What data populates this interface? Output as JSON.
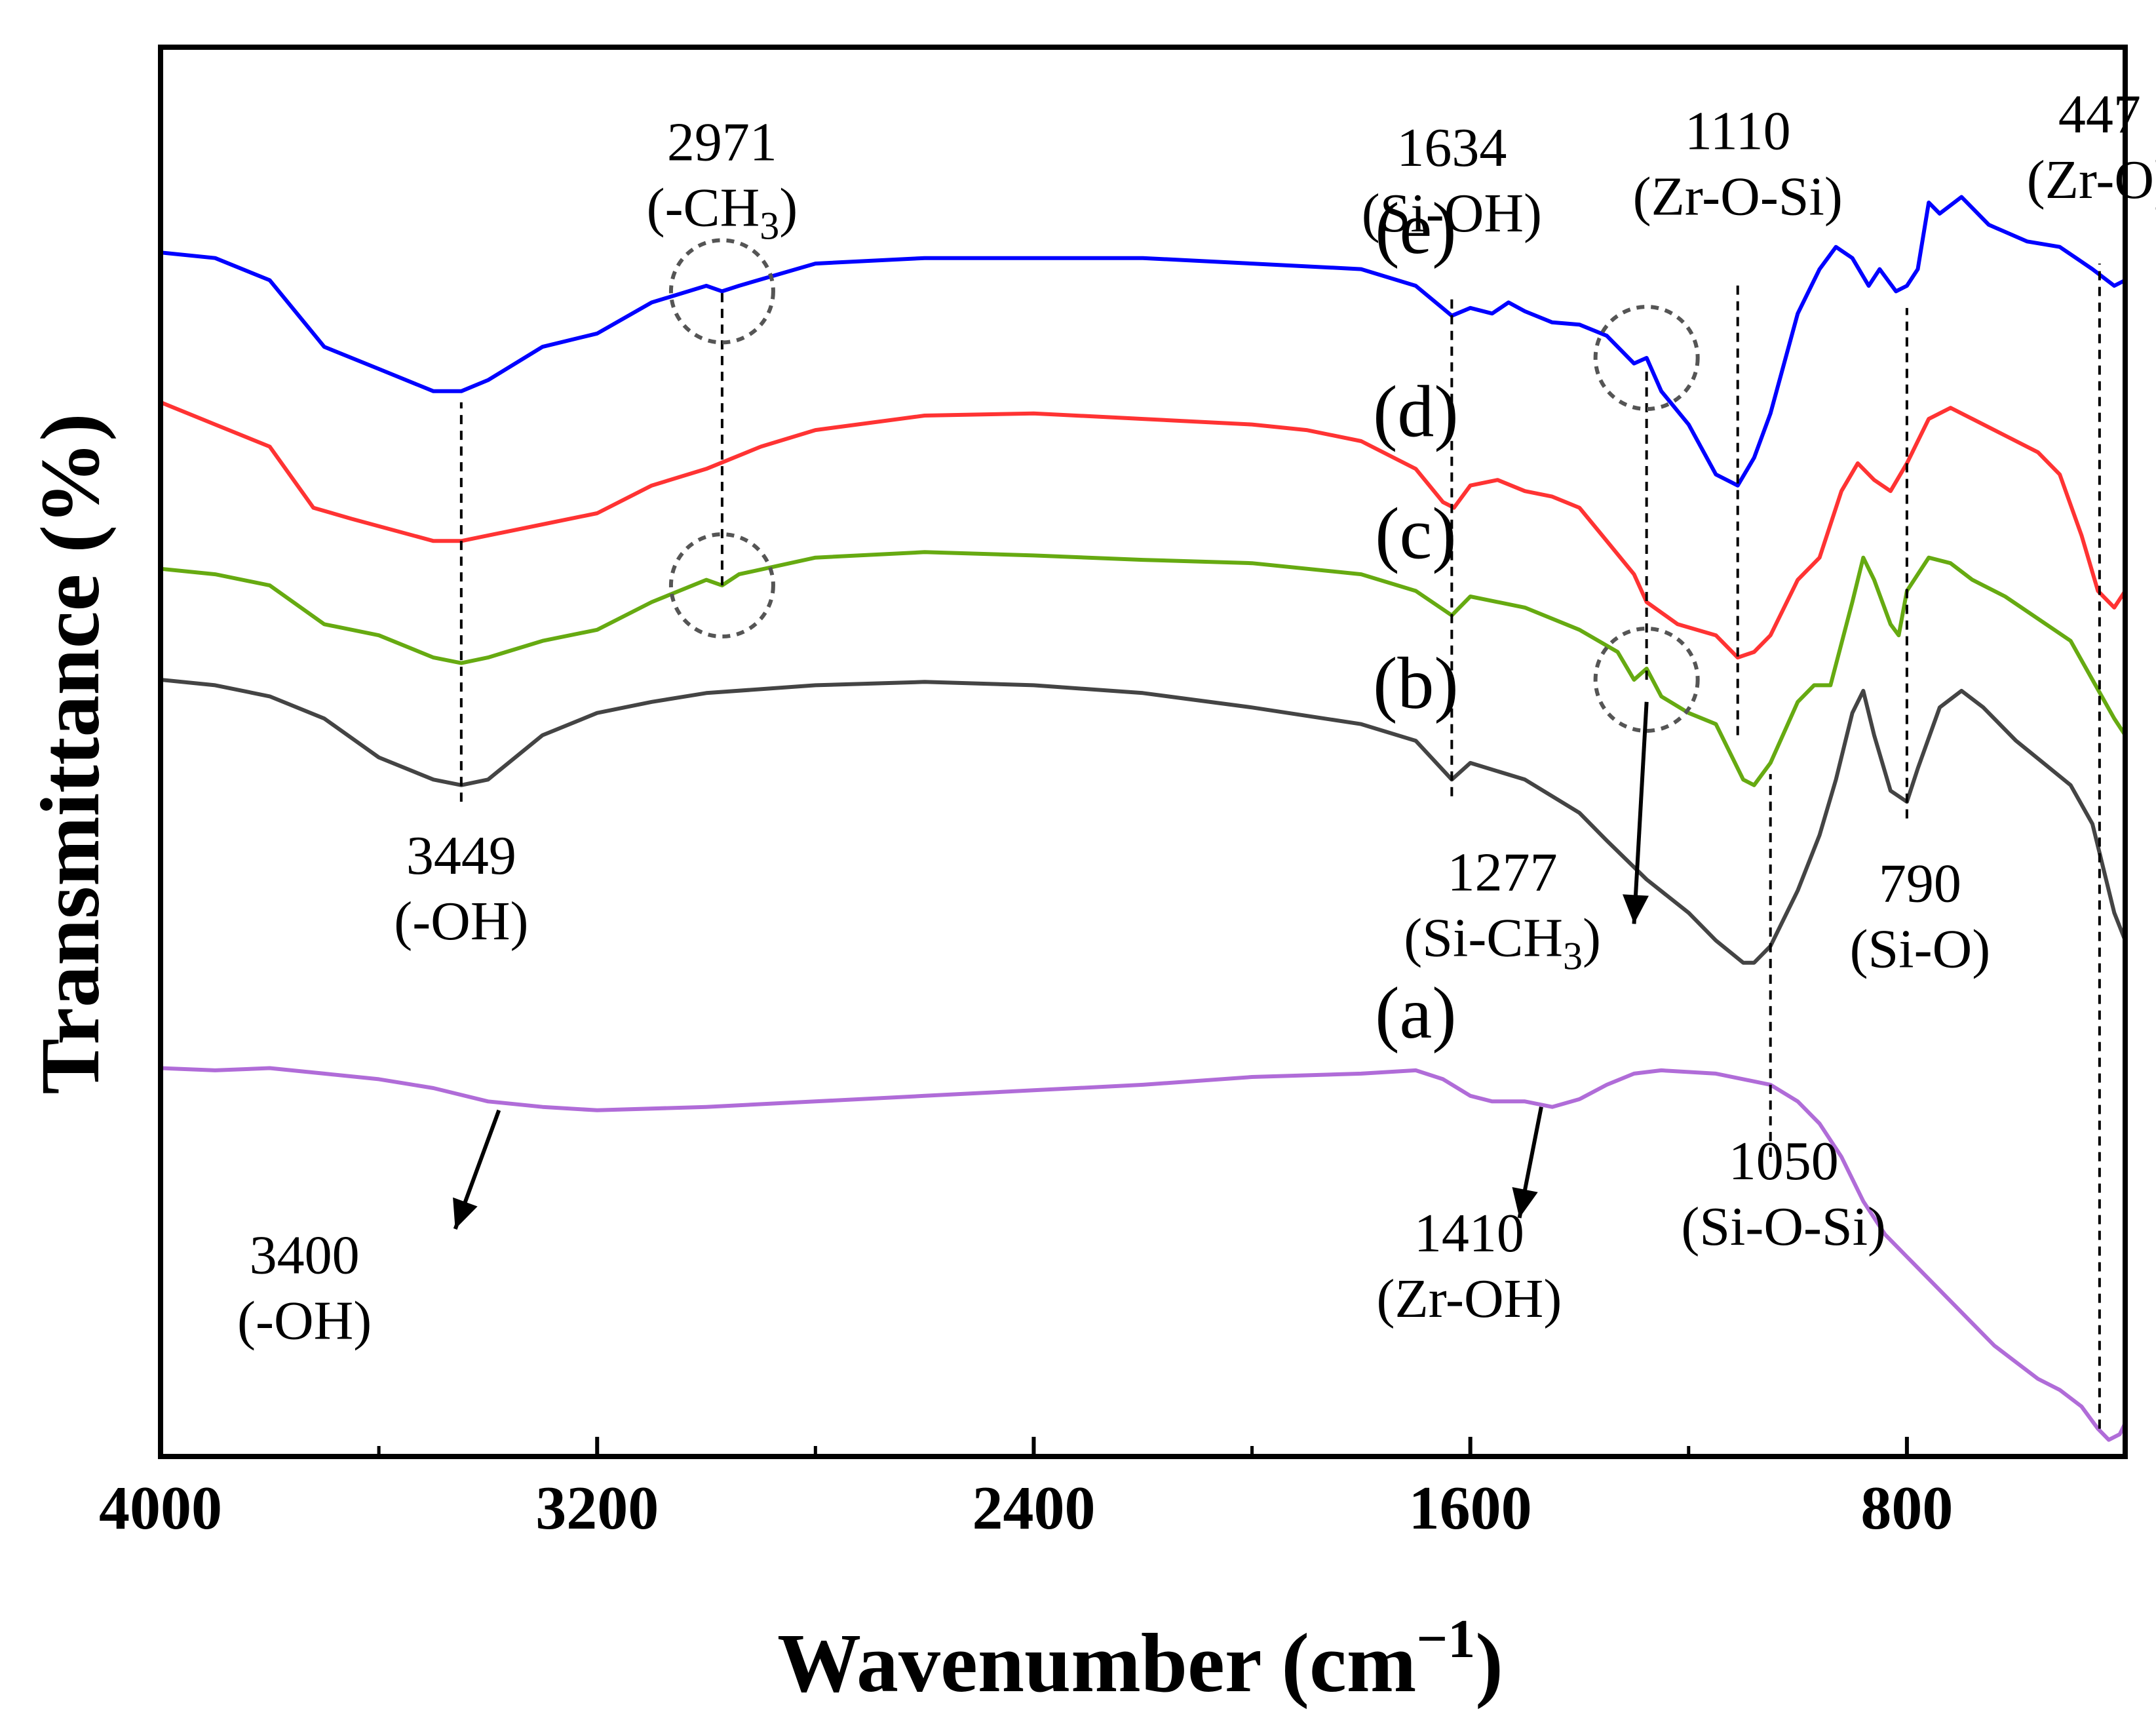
{
  "chart_data": {
    "type": "line",
    "xlabel": "Wavenumber (cm",
    "xlabel_sup": "−1",
    "xlabel_close": ")",
    "ylabel": "Transmittance (%)",
    "xlim": [
      4000,
      400
    ],
    "x_reversed": true,
    "yticks_shown": false,
    "x_ticks": [
      "4000",
      "3200",
      "2400",
      "1600",
      "800"
    ],
    "x_tick_values": [
      4000,
      3200,
      2400,
      1600,
      800
    ],
    "x_minor_tick_values": [
      3600,
      2800,
      2000,
      1200
    ],
    "series": [
      {
        "name": "(e)",
        "color": "#0000ff",
        "label_at": 1220,
        "points": [
          [
            4000,
            9.35
          ],
          [
            3900,
            9.3
          ],
          [
            3800,
            9.1
          ],
          [
            3700,
            8.5
          ],
          [
            3600,
            8.3
          ],
          [
            3500,
            8.1
          ],
          [
            3449,
            8.1
          ],
          [
            3400,
            8.2
          ],
          [
            3300,
            8.5
          ],
          [
            3200,
            8.62
          ],
          [
            3100,
            8.9
          ],
          [
            3000,
            9.05
          ],
          [
            2971,
            9.0
          ],
          [
            2940,
            9.05
          ],
          [
            2800,
            9.25
          ],
          [
            2600,
            9.3
          ],
          [
            2400,
            9.3
          ],
          [
            2200,
            9.3
          ],
          [
            2000,
            9.25
          ],
          [
            1800,
            9.2
          ],
          [
            1700,
            9.05
          ],
          [
            1634,
            8.78
          ],
          [
            1600,
            8.85
          ],
          [
            1560,
            8.8
          ],
          [
            1530,
            8.9
          ],
          [
            1500,
            8.82
          ],
          [
            1450,
            8.72
          ],
          [
            1400,
            8.7
          ],
          [
            1350,
            8.6
          ],
          [
            1300,
            8.35
          ],
          [
            1277,
            8.4
          ],
          [
            1250,
            8.1
          ],
          [
            1200,
            7.8
          ],
          [
            1150,
            7.35
          ],
          [
            1110,
            7.25
          ],
          [
            1080,
            7.5
          ],
          [
            1050,
            7.9
          ],
          [
            1000,
            8.8
          ],
          [
            960,
            9.2
          ],
          [
            930,
            9.4
          ],
          [
            900,
            9.3
          ],
          [
            870,
            9.05
          ],
          [
            850,
            9.2
          ],
          [
            820,
            9.0
          ],
          [
            800,
            9.05
          ],
          [
            780,
            9.2
          ],
          [
            760,
            9.8
          ],
          [
            740,
            9.7
          ],
          [
            700,
            9.85
          ],
          [
            650,
            9.6
          ],
          [
            580,
            9.45
          ],
          [
            520,
            9.4
          ],
          [
            460,
            9.2
          ],
          [
            420,
            9.05
          ],
          [
            400,
            9.1
          ]
        ]
      },
      {
        "name": "(d)",
        "color": "#ff3333",
        "label_at": 1220,
        "points": [
          [
            4000,
            8.0
          ],
          [
            3900,
            7.8
          ],
          [
            3800,
            7.6
          ],
          [
            3720,
            7.05
          ],
          [
            3650,
            6.95
          ],
          [
            3500,
            6.75
          ],
          [
            3449,
            6.75
          ],
          [
            3400,
            6.8
          ],
          [
            3300,
            6.9
          ],
          [
            3200,
            7.0
          ],
          [
            3100,
            7.25
          ],
          [
            3000,
            7.4
          ],
          [
            2900,
            7.6
          ],
          [
            2800,
            7.75
          ],
          [
            2600,
            7.88
          ],
          [
            2400,
            7.9
          ],
          [
            2200,
            7.85
          ],
          [
            2000,
            7.8
          ],
          [
            1900,
            7.75
          ],
          [
            1800,
            7.65
          ],
          [
            1700,
            7.4
          ],
          [
            1650,
            7.1
          ],
          [
            1630,
            7.05
          ],
          [
            1600,
            7.25
          ],
          [
            1550,
            7.3
          ],
          [
            1500,
            7.2
          ],
          [
            1450,
            7.15
          ],
          [
            1400,
            7.05
          ],
          [
            1350,
            6.75
          ],
          [
            1300,
            6.45
          ],
          [
            1277,
            6.2
          ],
          [
            1220,
            6.0
          ],
          [
            1150,
            5.9
          ],
          [
            1110,
            5.7
          ],
          [
            1080,
            5.75
          ],
          [
            1050,
            5.9
          ],
          [
            1000,
            6.4
          ],
          [
            960,
            6.6
          ],
          [
            920,
            7.2
          ],
          [
            890,
            7.45
          ],
          [
            860,
            7.3
          ],
          [
            830,
            7.2
          ],
          [
            800,
            7.45
          ],
          [
            760,
            7.85
          ],
          [
            720,
            7.95
          ],
          [
            680,
            7.85
          ],
          [
            620,
            7.7
          ],
          [
            560,
            7.55
          ],
          [
            520,
            7.35
          ],
          [
            480,
            6.8
          ],
          [
            450,
            6.3
          ],
          [
            420,
            6.15
          ],
          [
            400,
            6.3
          ]
        ]
      },
      {
        "name": "(c)",
        "color": "#66aa11",
        "label_at": 1220,
        "points": [
          [
            4000,
            6.5
          ],
          [
            3900,
            6.45
          ],
          [
            3800,
            6.35
          ],
          [
            3700,
            6.0
          ],
          [
            3600,
            5.9
          ],
          [
            3500,
            5.7
          ],
          [
            3449,
            5.65
          ],
          [
            3400,
            5.7
          ],
          [
            3300,
            5.85
          ],
          [
            3200,
            5.95
          ],
          [
            3100,
            6.2
          ],
          [
            3000,
            6.4
          ],
          [
            2971,
            6.35
          ],
          [
            2940,
            6.45
          ],
          [
            2800,
            6.6
          ],
          [
            2600,
            6.65
          ],
          [
            2400,
            6.62
          ],
          [
            2200,
            6.58
          ],
          [
            2000,
            6.55
          ],
          [
            1800,
            6.45
          ],
          [
            1700,
            6.3
          ],
          [
            1634,
            6.08
          ],
          [
            1600,
            6.25
          ],
          [
            1500,
            6.15
          ],
          [
            1400,
            5.95
          ],
          [
            1330,
            5.75
          ],
          [
            1300,
            5.5
          ],
          [
            1277,
            5.6
          ],
          [
            1250,
            5.35
          ],
          [
            1200,
            5.2
          ],
          [
            1150,
            5.1
          ],
          [
            1100,
            4.6
          ],
          [
            1080,
            4.55
          ],
          [
            1050,
            4.75
          ],
          [
            1000,
            5.3
          ],
          [
            970,
            5.45
          ],
          [
            940,
            5.45
          ],
          [
            900,
            6.2
          ],
          [
            880,
            6.6
          ],
          [
            860,
            6.4
          ],
          [
            830,
            6.0
          ],
          [
            815,
            5.9
          ],
          [
            800,
            6.3
          ],
          [
            760,
            6.6
          ],
          [
            720,
            6.55
          ],
          [
            680,
            6.4
          ],
          [
            620,
            6.25
          ],
          [
            560,
            6.05
          ],
          [
            500,
            5.85
          ],
          [
            460,
            5.5
          ],
          [
            420,
            5.15
          ],
          [
            400,
            5.0
          ]
        ]
      },
      {
        "name": "(b)",
        "color": "#444444",
        "label_at": 1220,
        "points": [
          [
            4000,
            5.5
          ],
          [
            3900,
            5.45
          ],
          [
            3800,
            5.35
          ],
          [
            3700,
            5.15
          ],
          [
            3600,
            4.8
          ],
          [
            3500,
            4.6
          ],
          [
            3449,
            4.55
          ],
          [
            3400,
            4.6
          ],
          [
            3300,
            5.0
          ],
          [
            3200,
            5.2
          ],
          [
            3100,
            5.3
          ],
          [
            3000,
            5.38
          ],
          [
            2800,
            5.45
          ],
          [
            2600,
            5.48
          ],
          [
            2400,
            5.45
          ],
          [
            2200,
            5.38
          ],
          [
            2000,
            5.25
          ],
          [
            1800,
            5.1
          ],
          [
            1700,
            4.95
          ],
          [
            1634,
            4.6
          ],
          [
            1600,
            4.75
          ],
          [
            1500,
            4.6
          ],
          [
            1400,
            4.3
          ],
          [
            1350,
            4.05
          ],
          [
            1277,
            3.7
          ],
          [
            1200,
            3.4
          ],
          [
            1150,
            3.15
          ],
          [
            1100,
            2.95
          ],
          [
            1080,
            2.95
          ],
          [
            1050,
            3.1
          ],
          [
            1000,
            3.6
          ],
          [
            960,
            4.1
          ],
          [
            930,
            4.6
          ],
          [
            900,
            5.2
          ],
          [
            880,
            5.4
          ],
          [
            860,
            5.0
          ],
          [
            830,
            4.5
          ],
          [
            800,
            4.4
          ],
          [
            780,
            4.7
          ],
          [
            740,
            5.25
          ],
          [
            700,
            5.4
          ],
          [
            660,
            5.25
          ],
          [
            600,
            4.95
          ],
          [
            550,
            4.75
          ],
          [
            500,
            4.55
          ],
          [
            460,
            4.2
          ],
          [
            420,
            3.4
          ],
          [
            400,
            3.15
          ]
        ]
      },
      {
        "name": "(a)",
        "color": "#b06cd8",
        "label_at": 1220,
        "points": [
          [
            4000,
            2.0
          ],
          [
            3900,
            1.98
          ],
          [
            3800,
            2.0
          ],
          [
            3700,
            1.95
          ],
          [
            3600,
            1.9
          ],
          [
            3500,
            1.82
          ],
          [
            3400,
            1.7
          ],
          [
            3300,
            1.65
          ],
          [
            3200,
            1.62
          ],
          [
            3000,
            1.65
          ],
          [
            2800,
            1.7
          ],
          [
            2600,
            1.75
          ],
          [
            2400,
            1.8
          ],
          [
            2200,
            1.85
          ],
          [
            2000,
            1.92
          ],
          [
            1800,
            1.95
          ],
          [
            1700,
            1.98
          ],
          [
            1650,
            1.9
          ],
          [
            1600,
            1.75
          ],
          [
            1560,
            1.7
          ],
          [
            1500,
            1.7
          ],
          [
            1450,
            1.65
          ],
          [
            1400,
            1.72
          ],
          [
            1350,
            1.85
          ],
          [
            1300,
            1.95
          ],
          [
            1250,
            1.98
          ],
          [
            1150,
            1.95
          ],
          [
            1100,
            1.9
          ],
          [
            1050,
            1.85
          ],
          [
            1000,
            1.7
          ],
          [
            960,
            1.5
          ],
          [
            920,
            1.2
          ],
          [
            880,
            0.8
          ],
          [
            840,
            0.5
          ],
          [
            800,
            0.3
          ],
          [
            760,
            0.1
          ],
          [
            720,
            -0.1
          ],
          [
            680,
            -0.3
          ],
          [
            640,
            -0.5
          ],
          [
            600,
            -0.65
          ],
          [
            560,
            -0.8
          ],
          [
            520,
            -0.9
          ],
          [
            480,
            -1.05
          ],
          [
            450,
            -1.25
          ],
          [
            430,
            -1.35
          ],
          [
            410,
            -1.3
          ],
          [
            400,
            -1.2
          ]
        ]
      }
    ],
    "ylim": [
      -1.5,
      11.2
    ],
    "annotations": [
      {
        "id": "ann-2971",
        "value": "2971",
        "group": "(-CH",
        "sub": "3",
        "close": ")",
        "x": 2971,
        "line_from": 6.35,
        "line_to": 9.0,
        "circles": [
          {
            "x": 2971,
            "y": 9.0
          },
          {
            "x": 2971,
            "y": 6.35
          }
        ]
      },
      {
        "id": "ann-1634",
        "value": "1634",
        "group": "(Si-OH)",
        "x": 1634,
        "line_from": 4.45,
        "line_to": 8.95
      },
      {
        "id": "ann-1110",
        "value": "1110",
        "group": "(Zr-O-Si)",
        "x": 1110,
        "line_from": 5.0,
        "line_to": 9.1
      },
      {
        "id": "ann-447",
        "value": "447",
        "group": "(Zr-O)",
        "x": 447,
        "line_from": -1.25,
        "line_to": 9.25
      },
      {
        "id": "ann-3449",
        "value": "3449",
        "group": "(-OH)",
        "x": 3449,
        "line_from": 4.4,
        "line_to": 8.0
      },
      {
        "id": "ann-1277",
        "value": "1277",
        "group": "(Si-CH",
        "sub": "3",
        "close": ")",
        "x": 1277,
        "line_from": 5.5,
        "line_to": 8.3,
        "circles": [
          {
            "x": 1277,
            "y": 8.4
          },
          {
            "x": 1277,
            "y": 5.5
          }
        ]
      },
      {
        "id": "ann-790",
        "value": "790",
        "group": "(Si-O)",
        "x": 800,
        "line_from": 4.25,
        "line_to": 8.85
      },
      {
        "id": "ann-1050",
        "value": "1050",
        "group": "(Si-O-Si)",
        "x": 1050,
        "line_from": 1.2,
        "line_to": 4.65
      },
      {
        "id": "ann-3400",
        "value": "3400",
        "group": "(-OH)",
        "x": 3400
      },
      {
        "id": "ann-1410",
        "value": "1410",
        "group": "(Zr-OH)",
        "x": 1410
      }
    ]
  }
}
